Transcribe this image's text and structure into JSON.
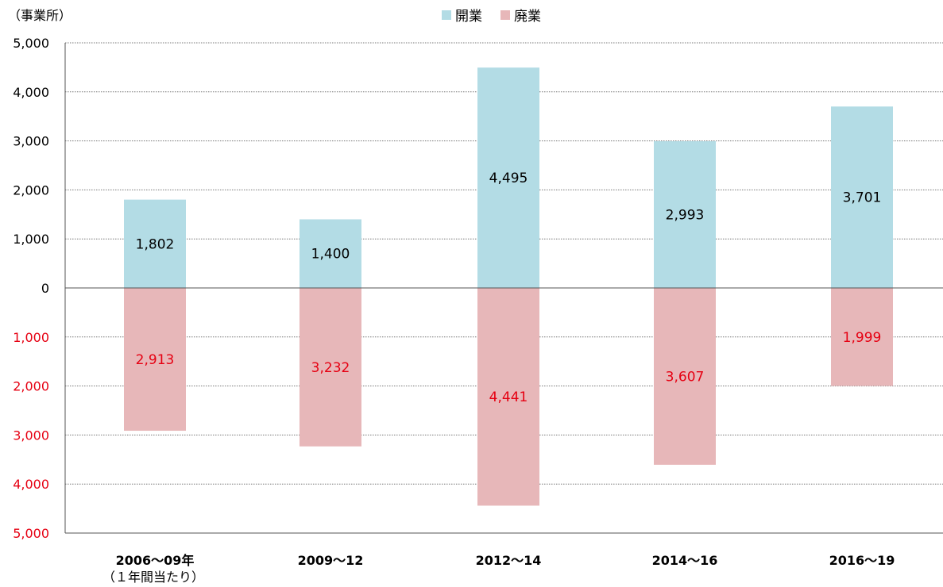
{
  "chart_data": {
    "type": "bar",
    "unit_label": "（事業所）",
    "categories": [
      "2006～09年",
      "2009～12",
      "2012～14",
      "2014～16",
      "2016～19"
    ],
    "category_note": "（１年間当たり）",
    "series": [
      {
        "name": "開業",
        "direction": "up",
        "color": "#b3dce5",
        "label_color": "#000000",
        "values": [
          1802,
          1400,
          4495,
          2993,
          3701
        ],
        "labels": [
          "1,802",
          "1,400",
          "4,495",
          "2,993",
          "3,701"
        ]
      },
      {
        "name": "廃業",
        "direction": "down",
        "color": "#e7b7b9",
        "label_color": "#e60012",
        "values": [
          2913,
          3232,
          4441,
          3607,
          1999
        ],
        "labels": [
          "2,913",
          "3,232",
          "4,441",
          "3,607",
          "1,999"
        ]
      }
    ],
    "ylim": [
      -5000,
      5000
    ],
    "yticks": [
      5000,
      4000,
      3000,
      2000,
      1000,
      0,
      -1000,
      -2000,
      -3000,
      -4000,
      -5000
    ],
    "ytick_labels": [
      "5,000",
      "4,000",
      "3,000",
      "2,000",
      "1,000",
      "0",
      "1,000",
      "2,000",
      "3,000",
      "4,000",
      "5,000"
    ],
    "ytick_colors": {
      "positive": "#000000",
      "zero": "#000000",
      "negative": "#e60012"
    },
    "grid": true,
    "legend_position": "top-center"
  }
}
